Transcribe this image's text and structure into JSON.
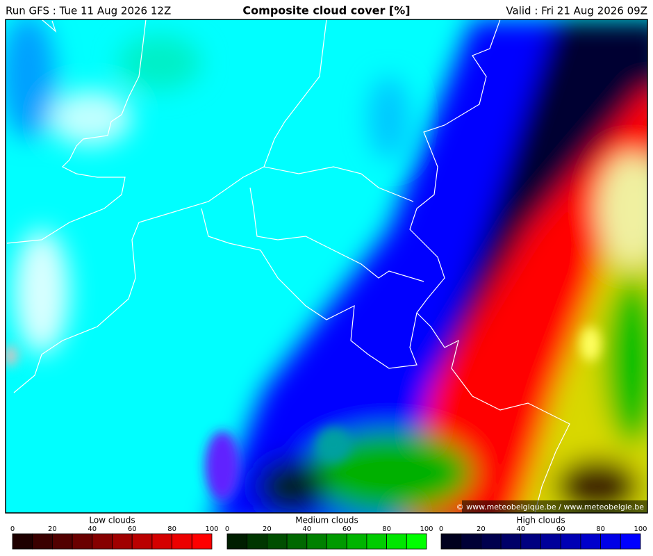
{
  "header": {
    "run": "Run GFS : Tue 11 Aug 2026 12Z",
    "title": "Composite cloud cover [%]",
    "valid": "Valid : Fri 21 Aug 2026 09Z"
  },
  "map": {
    "credit": "© www.meteobelgique.be / www.meteobelgie.be"
  },
  "legends": [
    {
      "title": "Low clouds",
      "ticks": [
        0,
        20,
        40,
        60,
        80,
        100
      ],
      "colors": [
        "#1e0000",
        "#3a0000",
        "#520000",
        "#6a0000",
        "#860000",
        "#a00000",
        "#ba0000",
        "#d40000",
        "#ec0000",
        "#ff0000"
      ]
    },
    {
      "title": "Medium clouds",
      "ticks": [
        0,
        20,
        40,
        60,
        80,
        100
      ],
      "colors": [
        "#001e00",
        "#003600",
        "#004e00",
        "#006800",
        "#008000",
        "#009a00",
        "#00b400",
        "#00cc00",
        "#00e600",
        "#00ff00"
      ]
    },
    {
      "title": "High clouds",
      "ticks": [
        0,
        20,
        40,
        60,
        80,
        100
      ],
      "colors": [
        "#00001e",
        "#000036",
        "#00004e",
        "#000068",
        "#000080",
        "#00009a",
        "#0000b4",
        "#0000cc",
        "#0000e6",
        "#0000ff"
      ]
    }
  ]
}
